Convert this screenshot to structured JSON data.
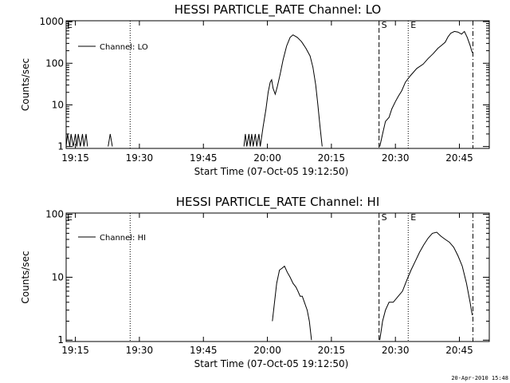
{
  "chart_data": [
    {
      "type": "line",
      "title": "HESSI PARTICLE_RATE Channel: LO",
      "xlabel": "Start Time (07-Oct-05 19:12:50)",
      "ylabel": "Counts/sec",
      "yscale": "log",
      "xlim": [
        "19:12:50",
        "20:52:00"
      ],
      "ylim": [
        0.9,
        1050
      ],
      "x_ticks": [
        "19:15",
        "19:30",
        "19:45",
        "20:00",
        "20:15",
        "20:30",
        "20:45"
      ],
      "y_ticks": [
        {
          "value": 1,
          "label": "1"
        },
        {
          "value": 10,
          "label": "10"
        },
        {
          "value": 100,
          "label": "100"
        },
        {
          "value": 1000,
          "label": "1000"
        }
      ],
      "legend_location": "upper-left",
      "grid": false,
      "markers": [
        {
          "time": "19:27:50",
          "style": "dotted",
          "label": ""
        },
        {
          "time": "20:26:10",
          "style": "dashed",
          "label": "S"
        },
        {
          "time": "20:33:00",
          "style": "dotted",
          "label": "E"
        },
        {
          "time": "20:48:10",
          "style": "dashdot",
          "label": ""
        }
      ],
      "corner_label": "E",
      "series": [
        {
          "name": "Channel: LO",
          "segments": [
            [
              [
                "19:12:50",
                1
              ],
              [
                "19:13:10",
                2
              ],
              [
                "19:13:40",
                1
              ],
              [
                "19:14:00",
                2
              ],
              [
                "19:14:30",
                1
              ],
              [
                "19:15:00",
                2
              ],
              [
                "19:15:20",
                1
              ],
              [
                "19:15:40",
                2
              ],
              [
                "19:16:10",
                1
              ],
              [
                "19:16:40",
                2
              ],
              [
                "19:17:00",
                1
              ],
              [
                "19:17:30",
                2
              ],
              [
                "19:17:50",
                1
              ]
            ],
            [
              [
                "19:22:40",
                1
              ],
              [
                "19:23:10",
                2
              ],
              [
                "19:23:40",
                1
              ]
            ],
            [
              [
                "19:54:30",
                1
              ],
              [
                "19:54:50",
                2
              ],
              [
                "19:55:10",
                1
              ],
              [
                "19:55:40",
                2
              ],
              [
                "19:56:00",
                1
              ],
              [
                "19:56:20",
                2
              ],
              [
                "19:56:40",
                1
              ],
              [
                "19:57:10",
                2
              ],
              [
                "19:57:30",
                1
              ],
              [
                "19:58:00",
                2
              ],
              [
                "19:58:20",
                1
              ]
            ],
            [
              [
                "19:58:20",
                1
              ],
              [
                "19:59:00",
                3
              ],
              [
                "19:59:40",
                8
              ],
              [
                "20:00:10",
                20
              ],
              [
                "20:00:40",
                35
              ],
              [
                "20:01:00",
                40
              ],
              [
                "20:01:20",
                25
              ],
              [
                "20:01:50",
                18
              ],
              [
                "20:02:20",
                28
              ],
              [
                "20:03:00",
                55
              ],
              [
                "20:03:40",
                120
              ],
              [
                "20:04:30",
                260
              ],
              [
                "20:05:20",
                420
              ],
              [
                "20:06:00",
                480
              ],
              [
                "20:07:00",
                420
              ],
              [
                "20:08:00",
                330
              ],
              [
                "20:09:00",
                230
              ],
              [
                "20:10:00",
                150
              ],
              [
                "20:10:40",
                80
              ],
              [
                "20:11:20",
                30
              ],
              [
                "20:11:50",
                10
              ],
              [
                "20:12:20",
                3
              ],
              [
                "20:12:50",
                1
              ]
            ],
            [
              [
                "20:26:20",
                1
              ],
              [
                "20:27:00",
                2
              ],
              [
                "20:27:40",
                4
              ],
              [
                "20:28:30",
                5
              ],
              [
                "20:29:10",
                8
              ],
              [
                "20:30:00",
                12
              ],
              [
                "20:30:40",
                16
              ],
              [
                "20:31:30",
                22
              ],
              [
                "20:32:20",
                35
              ],
              [
                "20:33:30",
                50
              ],
              [
                "20:35:00",
                75
              ],
              [
                "20:36:30",
                95
              ],
              [
                "20:37:40",
                130
              ],
              [
                "20:38:50",
                170
              ],
              [
                "20:40:00",
                230
              ],
              [
                "20:40:50",
                270
              ],
              [
                "20:41:40",
                320
              ],
              [
                "20:42:20",
                430
              ],
              [
                "20:43:00",
                530
              ],
              [
                "20:43:50",
                580
              ],
              [
                "20:44:40",
                560
              ],
              [
                "20:45:30",
                500
              ],
              [
                "20:46:10",
                580
              ],
              [
                "20:46:50",
                420
              ],
              [
                "20:47:30",
                270
              ],
              [
                "20:48:00",
                180
              ]
            ]
          ]
        }
      ]
    },
    {
      "type": "line",
      "title": "HESSI PARTICLE_RATE Channel: HI",
      "xlabel": "Start Time (07-Oct-05 19:12:50)",
      "ylabel": "Counts/sec",
      "yscale": "log",
      "xlim": [
        "19:12:50",
        "20:52:00"
      ],
      "ylim": [
        0.95,
        105
      ],
      "x_ticks": [
        "19:15",
        "19:30",
        "19:45",
        "20:00",
        "20:15",
        "20:30",
        "20:45"
      ],
      "y_ticks": [
        {
          "value": 1,
          "label": "1"
        },
        {
          "value": 10,
          "label": "10"
        },
        {
          "value": 100,
          "label": "100"
        }
      ],
      "legend_location": "upper-left",
      "grid": false,
      "markers": [
        {
          "time": "19:27:50",
          "style": "dotted",
          "label": ""
        },
        {
          "time": "20:26:10",
          "style": "dashed",
          "label": "S"
        },
        {
          "time": "20:33:00",
          "style": "dotted",
          "label": "E"
        },
        {
          "time": "20:48:10",
          "style": "dashdot",
          "label": ""
        }
      ],
      "corner_label": "E",
      "series": [
        {
          "name": "Channel: HI",
          "segments": [
            [
              [
                "20:01:10",
                2
              ],
              [
                "20:01:40",
                4
              ],
              [
                "20:02:10",
                8
              ],
              [
                "20:02:50",
                13
              ],
              [
                "20:03:30",
                14
              ],
              [
                "20:04:00",
                15
              ],
              [
                "20:04:40",
                12
              ],
              [
                "20:05:20",
                10
              ],
              [
                "20:06:00",
                8
              ],
              [
                "20:06:40",
                7
              ],
              [
                "20:07:10",
                6
              ],
              [
                "20:07:40",
                5
              ],
              [
                "20:08:10",
                5
              ],
              [
                "20:08:40",
                4
              ],
              [
                "20:09:20",
                3
              ],
              [
                "20:09:50",
                2
              ],
              [
                "20:10:20",
                1
              ]
            ],
            [
              [
                "20:26:20",
                1
              ],
              [
                "20:27:00",
                2
              ],
              [
                "20:27:40",
                3
              ],
              [
                "20:28:30",
                4
              ],
              [
                "20:29:30",
                4
              ],
              [
                "20:30:40",
                5
              ],
              [
                "20:31:40",
                6
              ],
              [
                "20:32:40",
                9
              ],
              [
                "20:33:40",
                13
              ],
              [
                "20:34:40",
                18
              ],
              [
                "20:35:40",
                25
              ],
              [
                "20:36:40",
                33
              ],
              [
                "20:37:40",
                42
              ],
              [
                "20:38:40",
                50
              ],
              [
                "20:39:40",
                52
              ],
              [
                "20:40:40",
                45
              ],
              [
                "20:41:40",
                40
              ],
              [
                "20:42:40",
                36
              ],
              [
                "20:43:40",
                30
              ],
              [
                "20:44:40",
                22
              ],
              [
                "20:45:40",
                15
              ],
              [
                "20:46:40",
                8
              ],
              [
                "20:47:30",
                4
              ],
              [
                "20:48:00",
                2.5
              ]
            ]
          ]
        }
      ]
    }
  ],
  "footer": {
    "timestamp": "20-Apr-2010 15:48"
  }
}
